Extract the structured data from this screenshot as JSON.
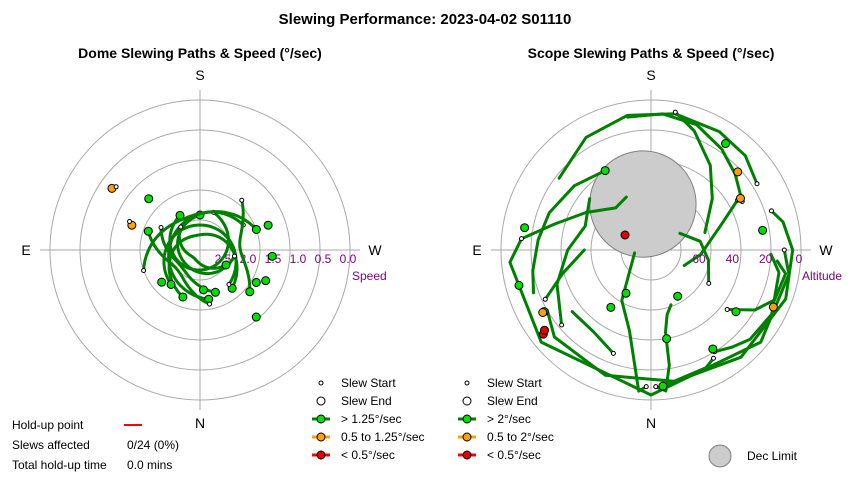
{
  "title": "Slewing Performance: 2023-04-02 S01110",
  "chart_data": [
    {
      "type": "scatter",
      "title": "Dome Slewing Paths & Speed (°/sec)",
      "compass": {
        "top": "S",
        "bottom": "N",
        "left": "E",
        "right": "W"
      },
      "radial_label": "Speed",
      "radial_ticks": [
        "2.5",
        "2.0",
        "1.5",
        "1.0",
        "0.5",
        "0.0"
      ],
      "radial_range": [
        3.0,
        0.0
      ],
      "speed_classes": [
        {
          "name": "> 1.25°/sec",
          "color": "#00a000"
        },
        {
          "name": "0.5 to 1.25°/sec",
          "color": "#ffa000"
        },
        {
          "name": "< 0.5°/sec",
          "color": "#ff0000"
        }
      ],
      "slews": [
        {
          "az": 200,
          "r_start": 2.0,
          "r_end": 2.7,
          "sweep": 300,
          "cls": 0
        },
        {
          "az": 140,
          "r_start": 2.1,
          "r_end": 2.5,
          "sweep": -280,
          "cls": 0
        },
        {
          "az": 100,
          "r_start": 2.3,
          "r_end": 2.6,
          "sweep": 260,
          "cls": 0
        },
        {
          "az": 60,
          "r_start": 2.0,
          "r_end": 2.4,
          "sweep": -250,
          "cls": 0
        },
        {
          "az": 20,
          "r_start": 2.2,
          "r_end": 2.6,
          "sweep": 310,
          "cls": 0
        },
        {
          "az": 320,
          "r_start": 2.4,
          "r_end": 2.8,
          "sweep": -200,
          "cls": 0
        },
        {
          "az": 250,
          "r_start": 1.8,
          "r_end": 2.3,
          "sweep": 180,
          "cls": 0
        },
        {
          "az": 170,
          "r_start": 1.9,
          "r_end": 2.4,
          "sweep": 120,
          "cls": 0
        },
        {
          "az": 300,
          "r_start": 2.1,
          "r_end": 2.5,
          "sweep": -140,
          "cls": 0
        },
        {
          "az": 40,
          "r_start": 1.7,
          "r_end": 2.2,
          "sweep": 90,
          "cls": 0
        }
      ],
      "points": [
        {
          "az": 120,
          "speed": 1.7,
          "kind": "end",
          "cls": 0
        },
        {
          "az": 115,
          "speed": 1.55,
          "kind": "end",
          "cls": 0
        },
        {
          "az": 140,
          "speed": 1.25,
          "kind": "end",
          "cls": 0
        },
        {
          "az": 95,
          "speed": 1.55,
          "kind": "end",
          "cls": 0
        },
        {
          "az": 70,
          "speed": 1.55,
          "kind": "end",
          "cls": 0
        },
        {
          "az": 290,
          "speed": 1.55,
          "kind": "end",
          "cls": 1
        },
        {
          "az": 292,
          "speed": 1.48,
          "kind": "start",
          "cls": 1
        },
        {
          "az": 305,
          "speed": 0.85,
          "kind": "end",
          "cls": 1
        },
        {
          "az": 307,
          "speed": 0.9,
          "kind": "start",
          "cls": 1
        },
        {
          "az": 315,
          "speed": 1.55,
          "kind": "end",
          "cls": 0
        },
        {
          "az": 200,
          "speed": 2.0,
          "kind": "end",
          "cls": 0
        },
        {
          "az": 230,
          "speed": 2.0,
          "kind": "end",
          "cls": 0
        },
        {
          "az": 175,
          "speed": 2.2,
          "kind": "end",
          "cls": 0
        }
      ],
      "legend": {
        "slew_start": "Slew Start",
        "slew_end": "Slew End",
        "fast": "> 1.25°/sec",
        "medium": "0.5 to 1.25°/sec",
        "slow": "< 0.5°/sec"
      }
    },
    {
      "type": "scatter",
      "title": "Scope Slewing Paths & Speed (°/sec)",
      "compass": {
        "top": "S",
        "bottom": "N",
        "left": "E",
        "right": "W"
      },
      "radial_label": "Altitude",
      "radial_ticks": [
        "60",
        "40",
        "20",
        "0"
      ],
      "radial_range": [
        90,
        0
      ],
      "dec_limit": {
        "az": 350,
        "alt": 62,
        "radius_deg": 22
      },
      "speed_classes": [
        {
          "name": "> 2°/sec",
          "color": "#00a000"
        },
        {
          "name": "0.5 to 2°/sec",
          "color": "#ffa000"
        },
        {
          "name": "< 0.5°/sec",
          "color": "#ff0000"
        }
      ],
      "slews": [
        [
          [
            178,
            8
          ],
          [
            174,
            5
          ],
          [
            171,
            20
          ],
          [
            170,
            40
          ],
          [
            166,
            50
          ],
          [
            160,
            55
          ]
        ],
        [
          [
            182,
            8
          ],
          [
            185,
            5
          ],
          [
            188,
            20
          ],
          [
            195,
            40
          ],
          [
            210,
            55
          ],
          [
            260,
            80
          ]
        ],
        [
          [
            148,
            18
          ],
          [
            140,
            14
          ],
          [
            132,
            10
          ],
          [
            118,
            8
          ],
          [
            100,
            12
          ],
          [
            92,
            18
          ]
        ],
        [
          [
            150,
            15
          ],
          [
            155,
            12
          ],
          [
            170,
            10
          ],
          [
            200,
            10
          ],
          [
            228,
            12
          ],
          [
            240,
            18
          ]
        ],
        [
          [
            128,
            32
          ],
          [
            120,
            18
          ],
          [
            112,
            10
          ],
          [
            100,
            8
          ],
          [
            95,
            14
          ]
        ],
        [
          [
            72,
            14
          ],
          [
            78,
            9
          ],
          [
            90,
            5
          ],
          [
            110,
            4
          ],
          [
            140,
            6
          ],
          [
            175,
            8
          ]
        ],
        [
          [
            90,
            10
          ],
          [
            100,
            6
          ],
          [
            130,
            4
          ],
          [
            180,
            3
          ],
          [
            230,
            4
          ],
          [
            265,
            5
          ],
          [
            275,
            12
          ]
        ],
        [
          [
            275,
            12
          ],
          [
            285,
            30
          ],
          [
            300,
            45
          ],
          [
            320,
            57
          ],
          [
            335,
            55
          ]
        ],
        [
          [
            62,
            28
          ],
          [
            48,
            22
          ],
          [
            35,
            16
          ],
          [
            20,
            10
          ],
          [
            5,
            8
          ],
          [
            350,
            9
          ]
        ],
        [
          [
            58,
            15
          ],
          [
            45,
            10
          ],
          [
            30,
            8
          ],
          [
            10,
            7
          ],
          [
            350,
            8
          ],
          [
            330,
            12
          ],
          [
            308,
            20
          ]
        ],
        [
          [
            10,
            6
          ],
          [
            20,
            14
          ],
          [
            35,
            28
          ],
          [
            50,
            42
          ],
          [
            72,
            56
          ]
        ],
        [
          [
            120,
            50
          ],
          [
            100,
            55
          ],
          [
            80,
            60
          ],
          [
            60,
            70
          ]
        ],
        [
          [
            330,
            35
          ],
          [
            310,
            30
          ],
          [
            290,
            25
          ],
          [
            275,
            22
          ],
          [
            260,
            18
          ],
          [
            250,
            15
          ]
        ],
        [
          [
            60,
            30
          ],
          [
            70,
            45
          ],
          [
            95,
            60
          ],
          [
            115,
            68
          ]
        ],
        [
          [
            230,
            20
          ],
          [
            250,
            30
          ],
          [
            270,
            40
          ],
          [
            290,
            48
          ],
          [
            310,
            42
          ]
        ],
        [
          [
            245,
            20
          ],
          [
            255,
            35
          ],
          [
            270,
            50
          ]
        ],
        [
          [
            200,
            24
          ],
          [
            215,
            30
          ],
          [
            232,
            30
          ]
        ]
      ],
      "points": [
        {
          "az": 175,
          "alt": 8,
          "kind": "end",
          "cls": 0
        },
        {
          "az": 148,
          "alt": 20,
          "kind": "end",
          "cls": 0
        },
        {
          "az": 126,
          "alt": 27,
          "kind": "end",
          "cls": 0
        },
        {
          "az": 80,
          "alt": 22,
          "kind": "end",
          "cls": 0
        },
        {
          "az": 255,
          "alt": 8,
          "kind": "end",
          "cls": 0
        },
        {
          "az": 280,
          "alt": 13,
          "kind": "end",
          "cls": 0
        },
        {
          "az": 240,
          "alt": 16,
          "kind": "end",
          "cls": 0
        },
        {
          "az": 115,
          "alt": 9,
          "kind": "end",
          "cls": 1
        },
        {
          "az": 60,
          "alt": 28,
          "kind": "end",
          "cls": 1
        },
        {
          "az": 48,
          "alt": 20,
          "kind": "end",
          "cls": 1
        },
        {
          "az": 35,
          "alt": 12,
          "kind": "end",
          "cls": 0
        },
        {
          "az": 330,
          "alt": 35,
          "kind": "end",
          "cls": 0
        },
        {
          "az": 215,
          "alt": 48,
          "kind": "end",
          "cls": 0
        },
        {
          "az": 240,
          "alt": 15,
          "kind": "end",
          "cls": 1
        },
        {
          "az": 232,
          "alt": 8,
          "kind": "end",
          "cls": 2
        },
        {
          "az": 233,
          "alt": 10,
          "kind": "end",
          "cls": 2
        },
        {
          "az": 300,
          "alt": 72,
          "kind": "end",
          "cls": 2
        },
        {
          "az": 150,
          "alt": 58,
          "kind": "end",
          "cls": 0
        },
        {
          "az": 210,
          "alt": 60,
          "kind": "end",
          "cls": 0
        },
        {
          "az": 170,
          "alt": 36,
          "kind": "end",
          "cls": 0
        }
      ],
      "legend": {
        "slew_start": "Slew Start",
        "slew_end": "Slew End",
        "fast": "> 2°/sec",
        "medium": "0.5 to 2°/sec",
        "slow": "< 0.5°/sec",
        "dec_limit": "Dec Limit"
      }
    }
  ],
  "holdup": {
    "point_label": "Hold-up point",
    "slews_label": "Slews affected",
    "slews_value": "0/24 (0%)",
    "total_label": "Total hold-up time",
    "total_value": "0.0 mins",
    "line_color": "#ff0000"
  }
}
